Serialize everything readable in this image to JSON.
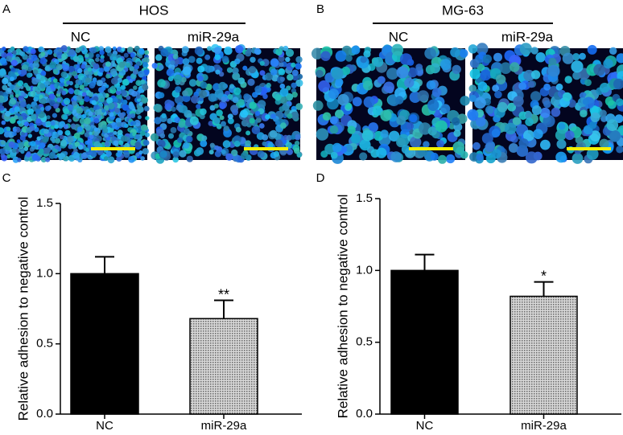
{
  "image_panels": [
    {
      "label": "A",
      "title": "HOS",
      "columns": [
        "NC",
        "miR-29a"
      ]
    },
    {
      "label": "B",
      "title": "MG-63",
      "columns": [
        "NC",
        "miR-29a"
      ]
    }
  ],
  "chart_data": [
    {
      "type": "bar",
      "panel_label": "C",
      "ylabel": "Relative adhesion to negative control",
      "categories": [
        "NC",
        "miR-29a"
      ],
      "values": [
        1.0,
        0.68
      ],
      "errors": [
        0.12,
        0.13
      ],
      "annotations": [
        {
          "category": "miR-29a",
          "text": "**"
        }
      ],
      "colors": [
        "#000000",
        "#b4b4b4"
      ],
      "ylim": [
        0,
        1.5
      ],
      "yticks": [
        {
          "value": 0,
          "label": "0.0"
        },
        {
          "value": 0.5,
          "label": "0.5"
        },
        {
          "value": 1,
          "label": "1.0"
        },
        {
          "value": 1.5,
          "label": "1.5"
        }
      ]
    },
    {
      "type": "bar",
      "panel_label": "D",
      "ylabel": "Relative adhesion to negative control",
      "categories": [
        "NC",
        "miR-29a"
      ],
      "values": [
        1.0,
        0.82
      ],
      "errors": [
        0.11,
        0.1
      ],
      "annotations": [
        {
          "category": "miR-29a",
          "text": "*"
        }
      ],
      "colors": [
        "#000000",
        "#b4b4b4"
      ],
      "ylim": [
        0,
        1.5
      ],
      "yticks": [
        {
          "value": 0,
          "label": "0.0"
        },
        {
          "value": 0.5,
          "label": "0.5"
        },
        {
          "value": 1,
          "label": "1.0"
        },
        {
          "value": 1.5,
          "label": "1.5"
        }
      ]
    }
  ]
}
